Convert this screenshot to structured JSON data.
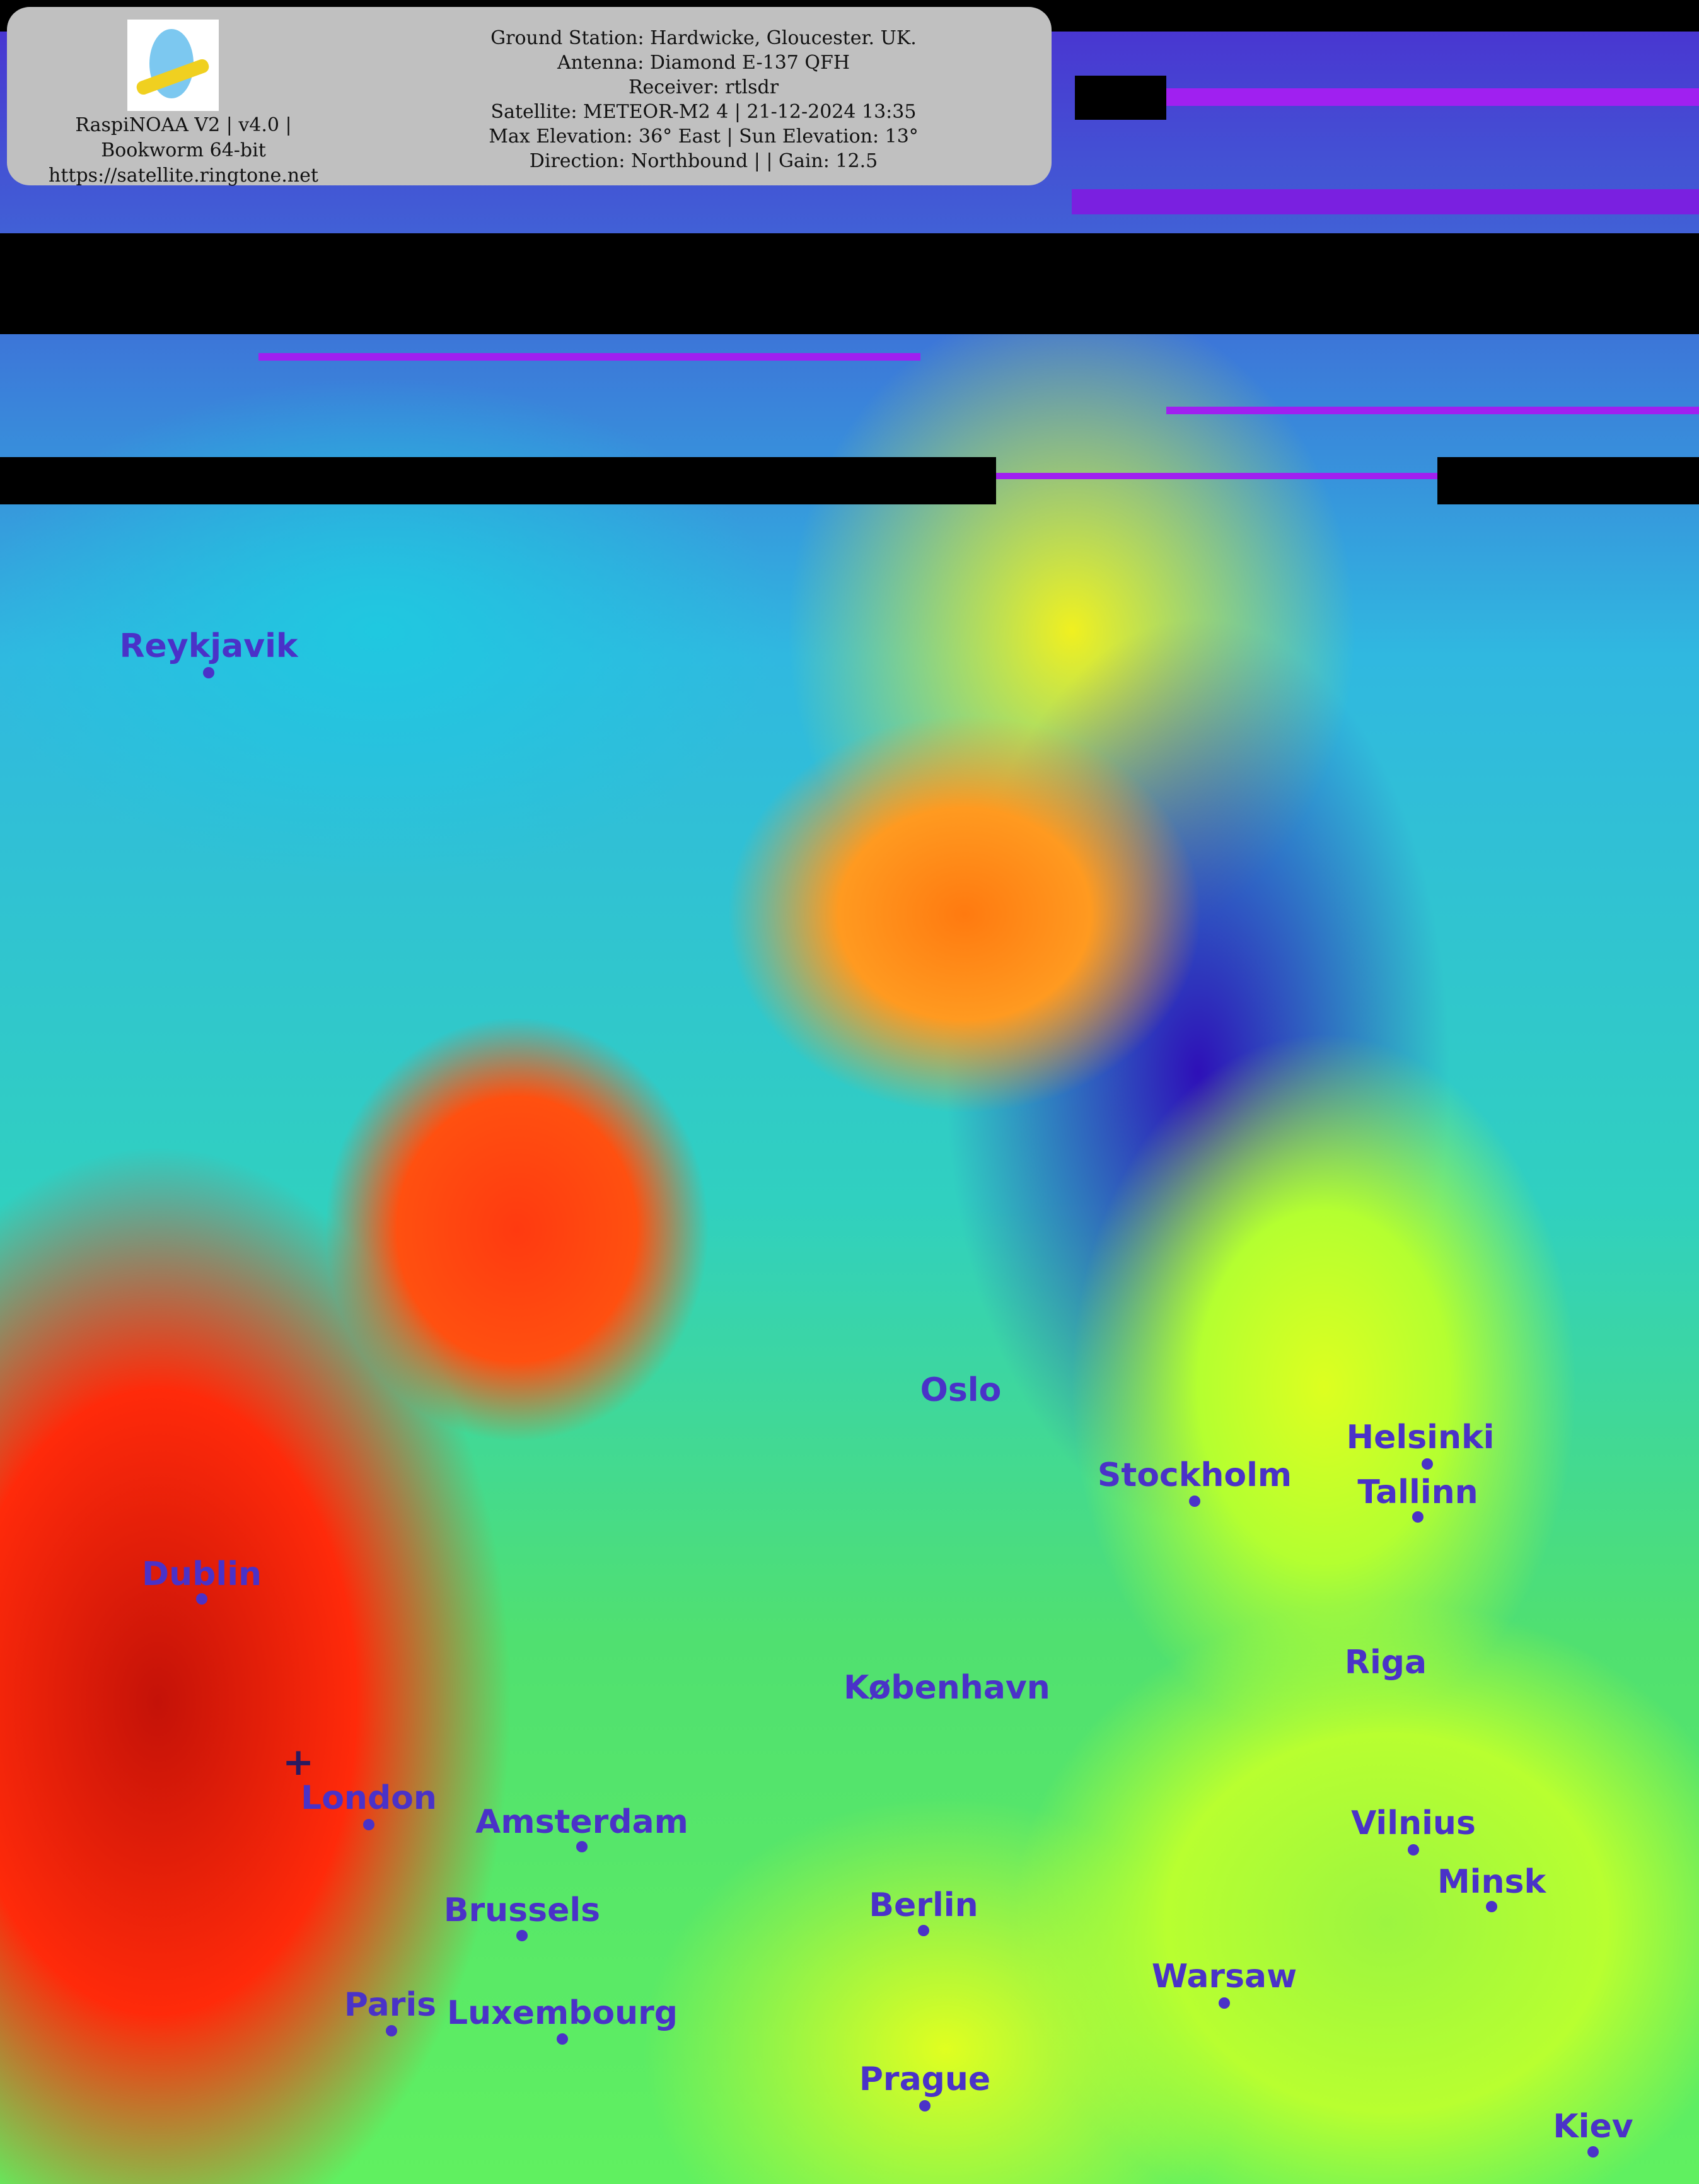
{
  "header": {
    "logo": "The Flying Doctor (logo)",
    "software": "RaspiNOAA V2 | v4.0 |",
    "os": "Bookworm 64-bit",
    "url": "https://satellite.ringtone.net",
    "ground_station": "Ground Station: Hardwicke, Gloucester. UK.",
    "antenna": "Antenna: Diamond E-137 QFH",
    "receiver": "Receiver: rtlsdr",
    "satellite": "Satellite: METEOR-M2 4 | 21-12-2024 13:35",
    "elevation": "Max Elevation: 36° East | Sun Elevation: 13°",
    "direction": "Direction: Northbound | | Gain: 12.5"
  },
  "colors": {
    "city_label": "#4a32c8",
    "overlay_box": "#c0c0c0",
    "coastline": "#e0e8f0",
    "border": "#f0f020"
  },
  "cities": [
    {
      "id": "reykjavik",
      "name": "Reykjavik"
    },
    {
      "id": "oslo",
      "name": "Oslo"
    },
    {
      "id": "stockholm",
      "name": "Stockholm"
    },
    {
      "id": "helsinki",
      "name": "Helsinki"
    },
    {
      "id": "tallinn",
      "name": "Tallinn"
    },
    {
      "id": "riga",
      "name": "Riga"
    },
    {
      "id": "kobenhavn",
      "name": "København"
    },
    {
      "id": "dublin",
      "name": "Dublin"
    },
    {
      "id": "london",
      "name": "London"
    },
    {
      "id": "amsterdam",
      "name": "Amsterdam"
    },
    {
      "id": "brussels",
      "name": "Brussels"
    },
    {
      "id": "berlin",
      "name": "Berlin"
    },
    {
      "id": "vilnius",
      "name": "Vilnius"
    },
    {
      "id": "minsk",
      "name": "Minsk"
    },
    {
      "id": "warsaw",
      "name": "Warsaw"
    },
    {
      "id": "paris",
      "name": "Paris"
    },
    {
      "id": "luxembourg",
      "name": "Luxembourg"
    },
    {
      "id": "prague",
      "name": "Prague"
    },
    {
      "id": "kiev",
      "name": "Kiev"
    }
  ]
}
